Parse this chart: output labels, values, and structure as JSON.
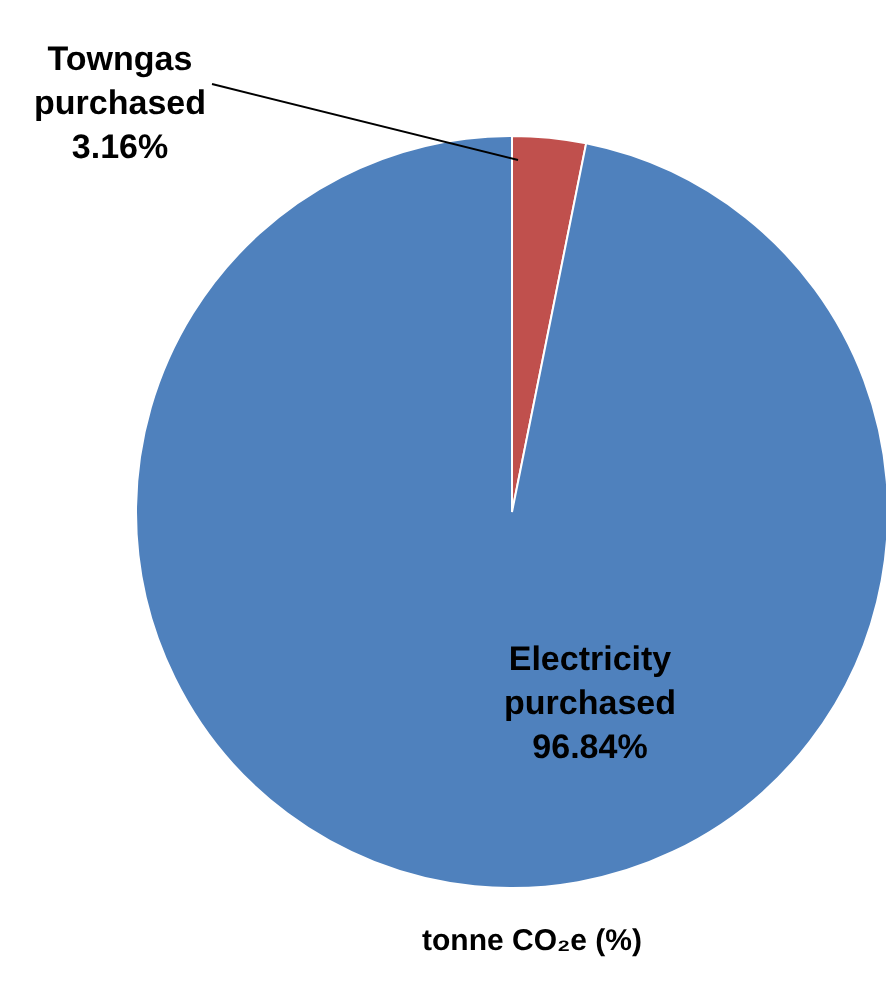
{
  "chart_data": {
    "type": "pie",
    "categories": [
      "Towngas purchased",
      "Electricity purchased"
    ],
    "values": [
      3.16,
      96.84
    ],
    "colors": [
      "#c0504d",
      "#4f81bd"
    ],
    "value_labels": [
      "3.16%",
      "96.84%"
    ],
    "annotations": [
      "tonne CO₂e (%)"
    ]
  }
}
